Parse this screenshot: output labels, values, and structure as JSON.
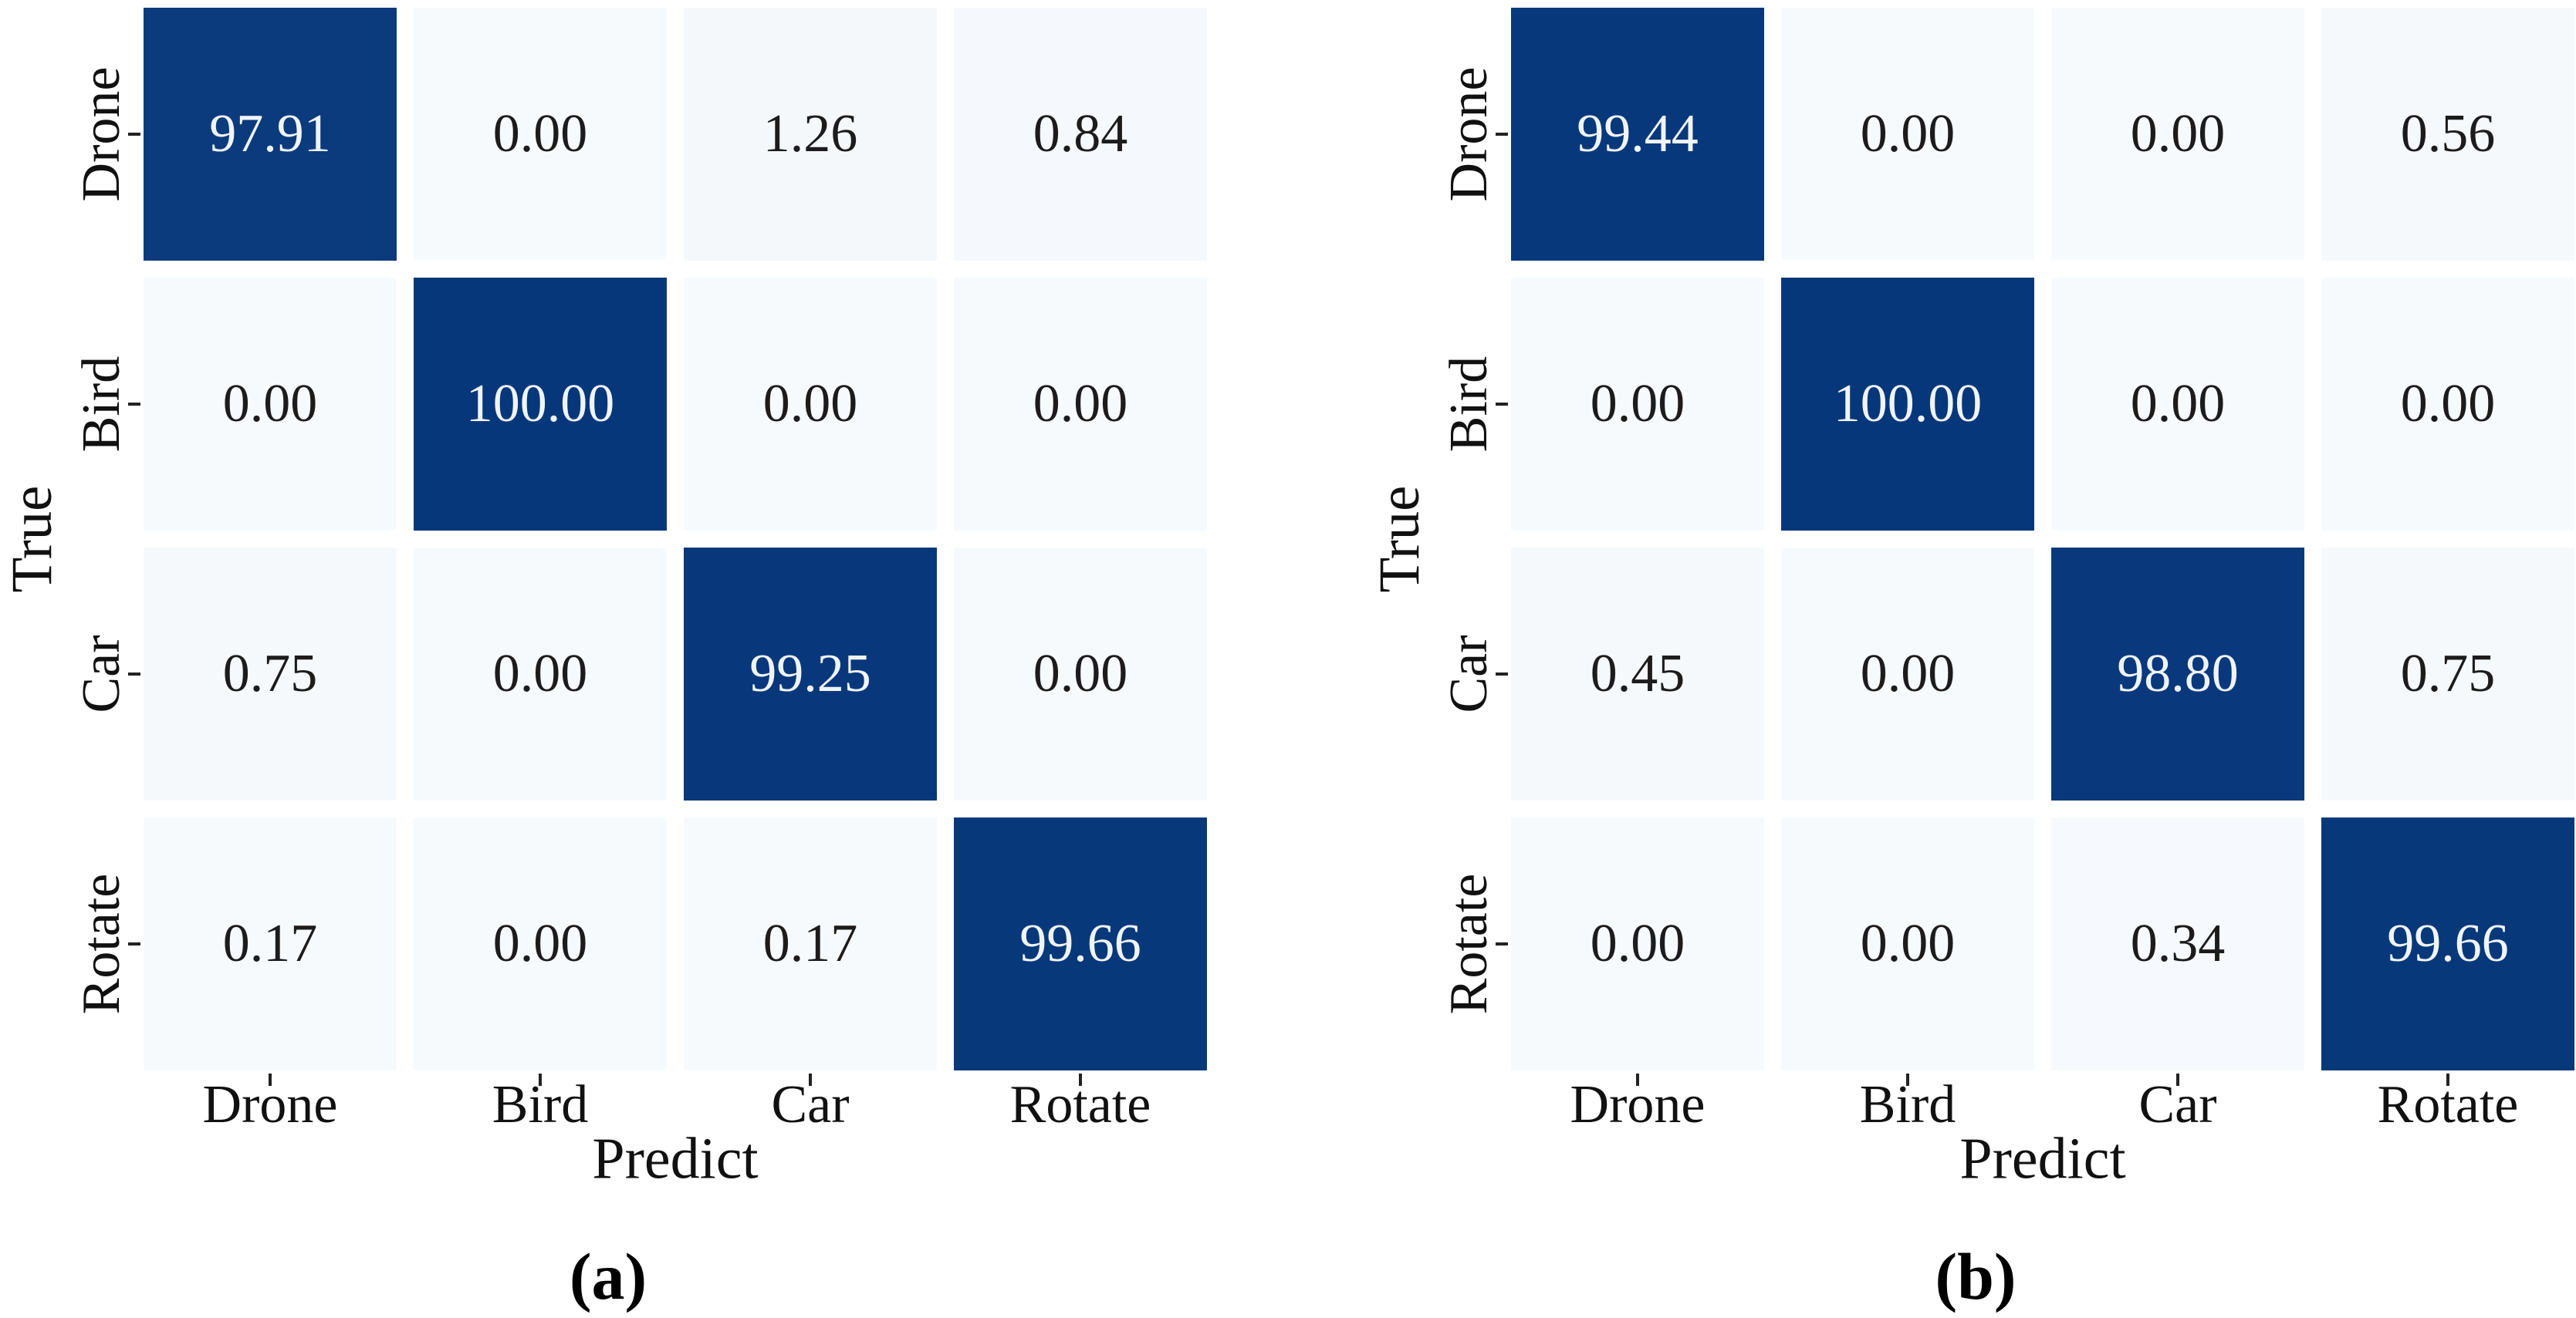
{
  "colors": {
    "cell_high": "#06377a",
    "cell_low": "#f7fafd",
    "value_on_dark": "#f0f4f9",
    "value_on_light": "#1c1c1c",
    "tick": "#222222",
    "axis_text": "#111111",
    "background": "#ffffff"
  },
  "chart_data": [
    {
      "type": "heatmap",
      "caption": "(a)",
      "xlabel": "Predict",
      "ylabel": "True",
      "x_categories": [
        "Drone",
        "Bird",
        "Car",
        "Rotate"
      ],
      "y_categories": [
        "Drone",
        "Bird",
        "Car",
        "Rotate"
      ],
      "values": [
        [
          97.91,
          0.0,
          1.26,
          0.84
        ],
        [
          0.0,
          100.0,
          0.0,
          0.0
        ],
        [
          0.75,
          0.0,
          99.25,
          0.0
        ],
        [
          0.17,
          0.0,
          0.17,
          99.66
        ]
      ],
      "value_format": "2dp",
      "value_range": [
        0,
        100
      ],
      "colormap": "Blues",
      "grid": "white-gaps",
      "legend": "none"
    },
    {
      "type": "heatmap",
      "caption": "(b)",
      "xlabel": "Predict",
      "ylabel": "True",
      "x_categories": [
        "Drone",
        "Bird",
        "Car",
        "Rotate"
      ],
      "y_categories": [
        "Drone",
        "Bird",
        "Car",
        "Rotate"
      ],
      "values": [
        [
          99.44,
          0.0,
          0.0,
          0.56
        ],
        [
          0.0,
          100.0,
          0.0,
          0.0
        ],
        [
          0.45,
          0.0,
          98.8,
          0.75
        ],
        [
          0.0,
          0.0,
          0.34,
          99.66
        ]
      ],
      "value_format": "2dp",
      "value_range": [
        0,
        100
      ],
      "colormap": "Blues",
      "grid": "white-gaps",
      "legend": "none"
    }
  ]
}
